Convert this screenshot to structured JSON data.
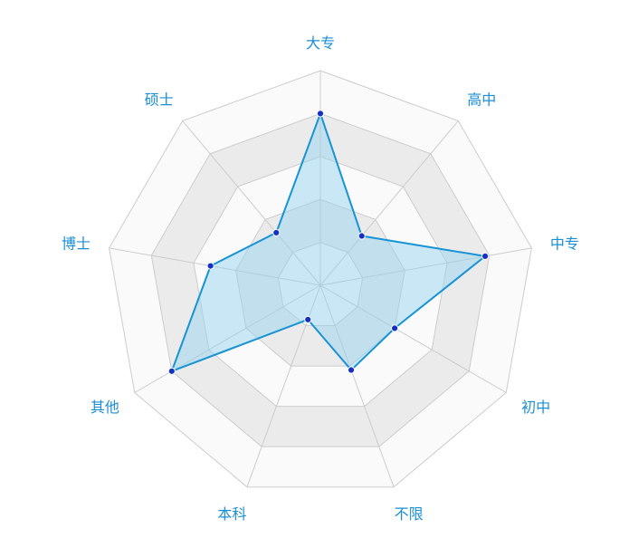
{
  "chart_data": {
    "type": "radar",
    "categories": [
      "大专",
      "高中",
      "中专",
      "初中",
      "不限",
      "本科",
      "其他",
      "博士",
      "硕士"
    ],
    "max": 100,
    "rings": 5,
    "series": [
      {
        "values": [
          80,
          30,
          78,
          40,
          42,
          17,
          80,
          52,
          32
        ]
      }
    ],
    "colors": {
      "label": "#1a8fd6",
      "line": "#1793d6",
      "fill": "#8fd0ee",
      "point": "#1530c8",
      "grid_line": "#cccccc",
      "ring_light": "#fafafa",
      "ring_dark": "#ebebeb"
    }
  }
}
